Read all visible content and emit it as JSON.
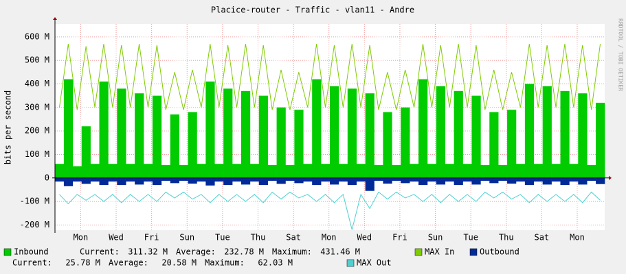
{
  "chart_data": {
    "type": "rrd",
    "title": "Placice-router - Traffic - vlan11 - Andre",
    "y_label": "bits per second",
    "watermark": "RRDTOOL / TOBI OETIKER",
    "xlim": [
      0,
      62
    ],
    "xticks": [
      {
        "value": 2.9,
        "label": "Mon"
      },
      {
        "value": 6.9,
        "label": "Wed"
      },
      {
        "value": 10.9,
        "label": "Fri"
      },
      {
        "value": 14.9,
        "label": "Sun"
      },
      {
        "value": 18.9,
        "label": "Tue"
      },
      {
        "value": 22.9,
        "label": "Thu"
      },
      {
        "value": 26.9,
        "label": "Sat"
      },
      {
        "value": 30.9,
        "label": "Mon"
      },
      {
        "value": 34.9,
        "label": "Wed"
      },
      {
        "value": 38.9,
        "label": "Fri"
      },
      {
        "value": 42.9,
        "label": "Sun"
      },
      {
        "value": 46.9,
        "label": "Tue"
      },
      {
        "value": 50.9,
        "label": "Thu"
      },
      {
        "value": 54.9,
        "label": "Sat"
      },
      {
        "value": 58.9,
        "label": "Mon"
      }
    ],
    "ylim": [
      -222,
      655
    ],
    "yticks": [
      {
        "value": -200,
        "label": "-200 M"
      },
      {
        "value": -100,
        "label": "-100 M"
      },
      0,
      {
        "value": 100,
        "label": "100 M"
      },
      {
        "value": 200,
        "label": "200 M"
      },
      {
        "value": 300,
        "label": "300 M"
      },
      {
        "value": 400,
        "label": "400 M"
      },
      {
        "value": 500,
        "label": "500 M"
      },
      {
        "value": 600,
        "label": "600 M"
      }
    ],
    "grid": true,
    "series": [
      {
        "name": "Inbound",
        "color": "#00cc00",
        "style": "bar",
        "stats": [
          {
            "label": "Current:",
            "value": "311.32 M"
          },
          {
            "label": "Average:",
            "value": "232.78 M"
          },
          {
            "label": "Maximum:",
            "value": "431.46 M"
          }
        ],
        "values": [
          60,
          420,
          50,
          220,
          60,
          410,
          60,
          380,
          60,
          360,
          60,
          350,
          55,
          270,
          55,
          280,
          60,
          410,
          60,
          380,
          60,
          370,
          60,
          350,
          55,
          300,
          55,
          290,
          60,
          420,
          60,
          390,
          60,
          380,
          60,
          360,
          55,
          280,
          55,
          300,
          60,
          420,
          60,
          390,
          60,
          370,
          60,
          350,
          55,
          280,
          55,
          290,
          60,
          400,
          60,
          390,
          60,
          370,
          60,
          360,
          55,
          320
        ]
      },
      {
        "name": "MAX In",
        "color": "#7fcc00",
        "style": "line",
        "values": [
          300,
          570,
          290,
          560,
          300,
          570,
          300,
          565,
          300,
          570,
          300,
          565,
          290,
          450,
          290,
          460,
          300,
          570,
          300,
          565,
          300,
          570,
          300,
          565,
          290,
          460,
          290,
          450,
          300,
          570,
          300,
          565,
          300,
          570,
          300,
          565,
          290,
          450,
          290,
          460,
          300,
          570,
          300,
          565,
          300,
          570,
          300,
          565,
          290,
          460,
          290,
          450,
          300,
          570,
          300,
          565,
          300,
          570,
          300,
          565,
          290,
          570
        ]
      },
      {
        "name": "Outbound",
        "color": "#002a97",
        "style": "bar",
        "stats": [
          {
            "label": "Current:",
            "value": "25.78 M"
          },
          {
            "label": "Average:",
            "value": "20.58 M"
          },
          {
            "label": "Maximum:",
            "value": "62.03 M"
          }
        ],
        "values": [
          -15,
          -35,
          -15,
          -25,
          -15,
          -30,
          -15,
          -30,
          -15,
          -28,
          -15,
          -30,
          -12,
          -22,
          -12,
          -24,
          -15,
          -32,
          -15,
          -30,
          -15,
          -28,
          -15,
          -30,
          -12,
          -25,
          -12,
          -22,
          -15,
          -30,
          -15,
          -28,
          -15,
          -30,
          -15,
          -55,
          -12,
          -24,
          -12,
          -22,
          -15,
          -30,
          -15,
          -28,
          -15,
          -30,
          -15,
          -28,
          -12,
          -22,
          -12,
          -24,
          -15,
          -30,
          -15,
          -28,
          -15,
          -30,
          -15,
          -28,
          -12,
          -26
        ]
      },
      {
        "name": "MAX Out",
        "color": "#4fd0d0",
        "style": "line",
        "values": [
          -70,
          -110,
          -70,
          -95,
          -70,
          -100,
          -70,
          -105,
          -70,
          -100,
          -70,
          -100,
          -60,
          -85,
          -60,
          -90,
          -70,
          -105,
          -70,
          -100,
          -70,
          -100,
          -70,
          -105,
          -60,
          -90,
          -60,
          -85,
          -70,
          -100,
          -70,
          -105,
          -70,
          -220,
          -70,
          -130,
          -60,
          -90,
          -60,
          -85,
          -70,
          -100,
          -70,
          -105,
          -70,
          -100,
          -70,
          -100,
          -60,
          -85,
          -60,
          -90,
          -70,
          -105,
          -70,
          -100,
          -70,
          -100,
          -70,
          -105,
          -60,
          -95
        ]
      }
    ]
  }
}
